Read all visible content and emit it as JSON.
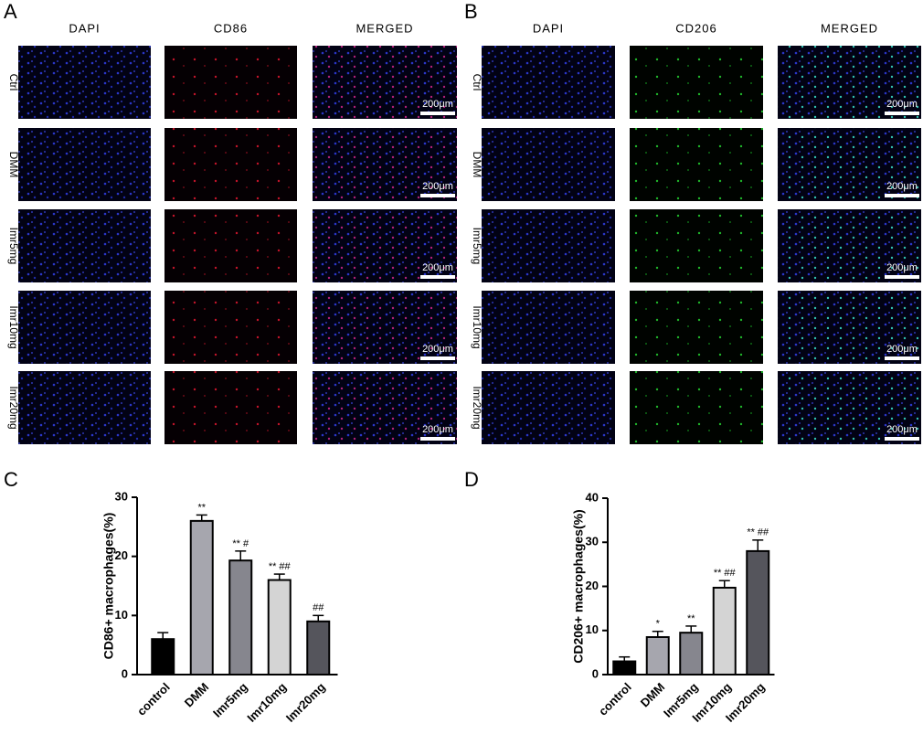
{
  "panel_a": {
    "letter": "A",
    "columns": [
      "DAPI",
      "CD86",
      "MERGED"
    ],
    "rows": [
      "Ctrl",
      "DMM",
      "Imr5mg",
      "Imr10mg",
      "Imr20mg"
    ],
    "scale_bar": "200μm"
  },
  "panel_b": {
    "letter": "B",
    "columns": [
      "DAPI",
      "CD206",
      "MERGED"
    ],
    "rows": [
      "Ctrl",
      "DMM",
      "Imr5mg",
      "Imr10mg",
      "Imr20mg"
    ],
    "scale_bar": "200μm"
  },
  "chart_data": [
    {
      "type": "bar",
      "panel": "C",
      "y_label": "CD86+ macrophages(%)",
      "categories": [
        "control",
        "DMM",
        "Imr5mg",
        "Imr10mg",
        "Imr20mg"
      ],
      "values": [
        6,
        26,
        19.3,
        16,
        9
      ],
      "errors": [
        1.1,
        1,
        1.6,
        1,
        1
      ],
      "annotations": [
        null,
        "**",
        "** #",
        "** ##",
        "##"
      ],
      "colors": [
        "#000000",
        "#a6a6ae",
        "#86868e",
        "#d4d4d4",
        "#55555c"
      ],
      "ylim": [
        0,
        30
      ],
      "yticks": [
        0,
        10,
        20,
        30
      ]
    },
    {
      "type": "bar",
      "panel": "D",
      "y_label": "CD206+ macrophages(%)",
      "categories": [
        "control",
        "DMM",
        "Imr5mg",
        "Imr10mg",
        "Imr20mg"
      ],
      "values": [
        3,
        8.5,
        9.5,
        19.7,
        28
      ],
      "errors": [
        1,
        1.3,
        1.5,
        1.6,
        2.5
      ],
      "annotations": [
        null,
        "*",
        "**",
        "** ##",
        "** ##"
      ],
      "colors": [
        "#000000",
        "#a6a6ae",
        "#86868e",
        "#d4d4d4",
        "#55555c"
      ],
      "ylim": [
        0,
        40
      ],
      "yticks": [
        0,
        10,
        20,
        30,
        40
      ]
    }
  ]
}
